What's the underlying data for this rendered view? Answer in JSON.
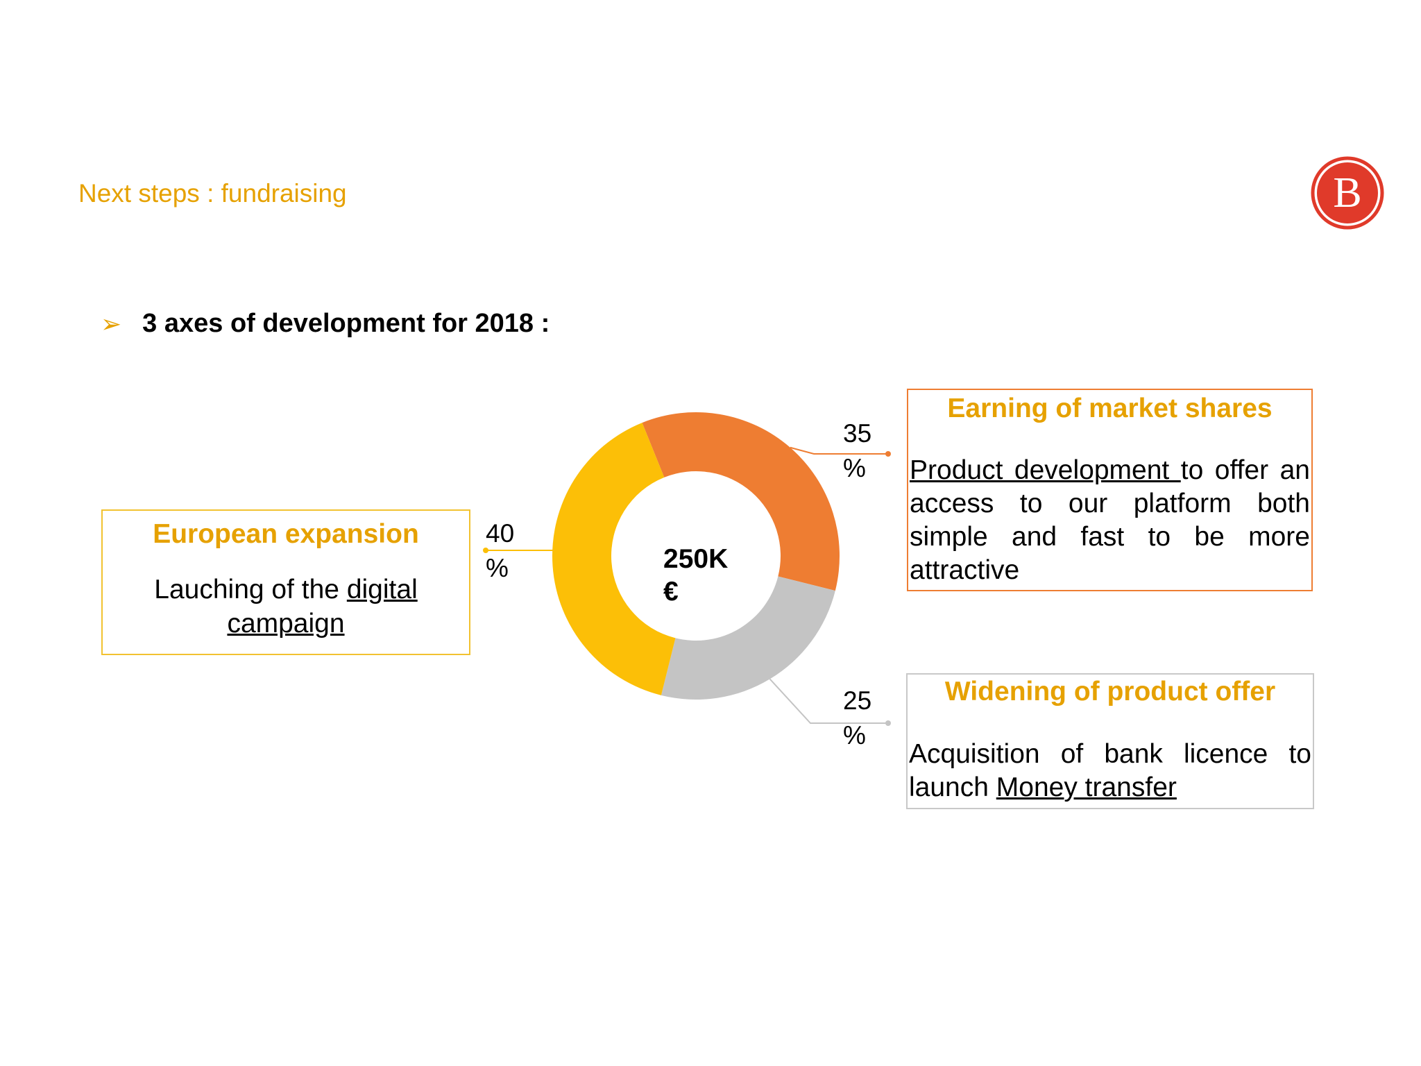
{
  "slide": {
    "title": "Next steps : fundraising",
    "bullet_symbol": "➢",
    "bullet_text": "3 axes of development for 2018 :"
  },
  "logo": {
    "letter": "B",
    "color": "#e03a2a"
  },
  "center_label": {
    "line1": "250K",
    "line2": "€"
  },
  "boxes": {
    "european": {
      "title": "European expansion",
      "body_plain": "Lauching of the ",
      "body_link1": "digital",
      "body_link2": "campaign",
      "border_color": "#f2c230"
    },
    "market": {
      "title": "Earning of market shares",
      "body_link": "Product development ",
      "body_plain": "to offer an access to our platform both simple and fast to be more attractive",
      "border_color": "#ee7d32"
    },
    "product": {
      "title": "Widening of product offer",
      "body_plain1": "Acquisition of bank licence to launch ",
      "body_link": "Money transfer",
      "border_color": "#c8c8c8"
    }
  },
  "chart_data": {
    "type": "pie",
    "donut": true,
    "center_label": "250K €",
    "slices": [
      {
        "name": "Earning of market shares",
        "value": 35,
        "label_value": "35",
        "label_unit": "%",
        "color": "#ee7d32"
      },
      {
        "name": "Widening of product offer",
        "value": 25,
        "label_value": "25",
        "label_unit": "%",
        "color": "#c4c4c4"
      },
      {
        "name": "European expansion",
        "value": 40,
        "label_value": "40",
        "label_unit": "%",
        "color": "#fcbf07"
      }
    ]
  }
}
